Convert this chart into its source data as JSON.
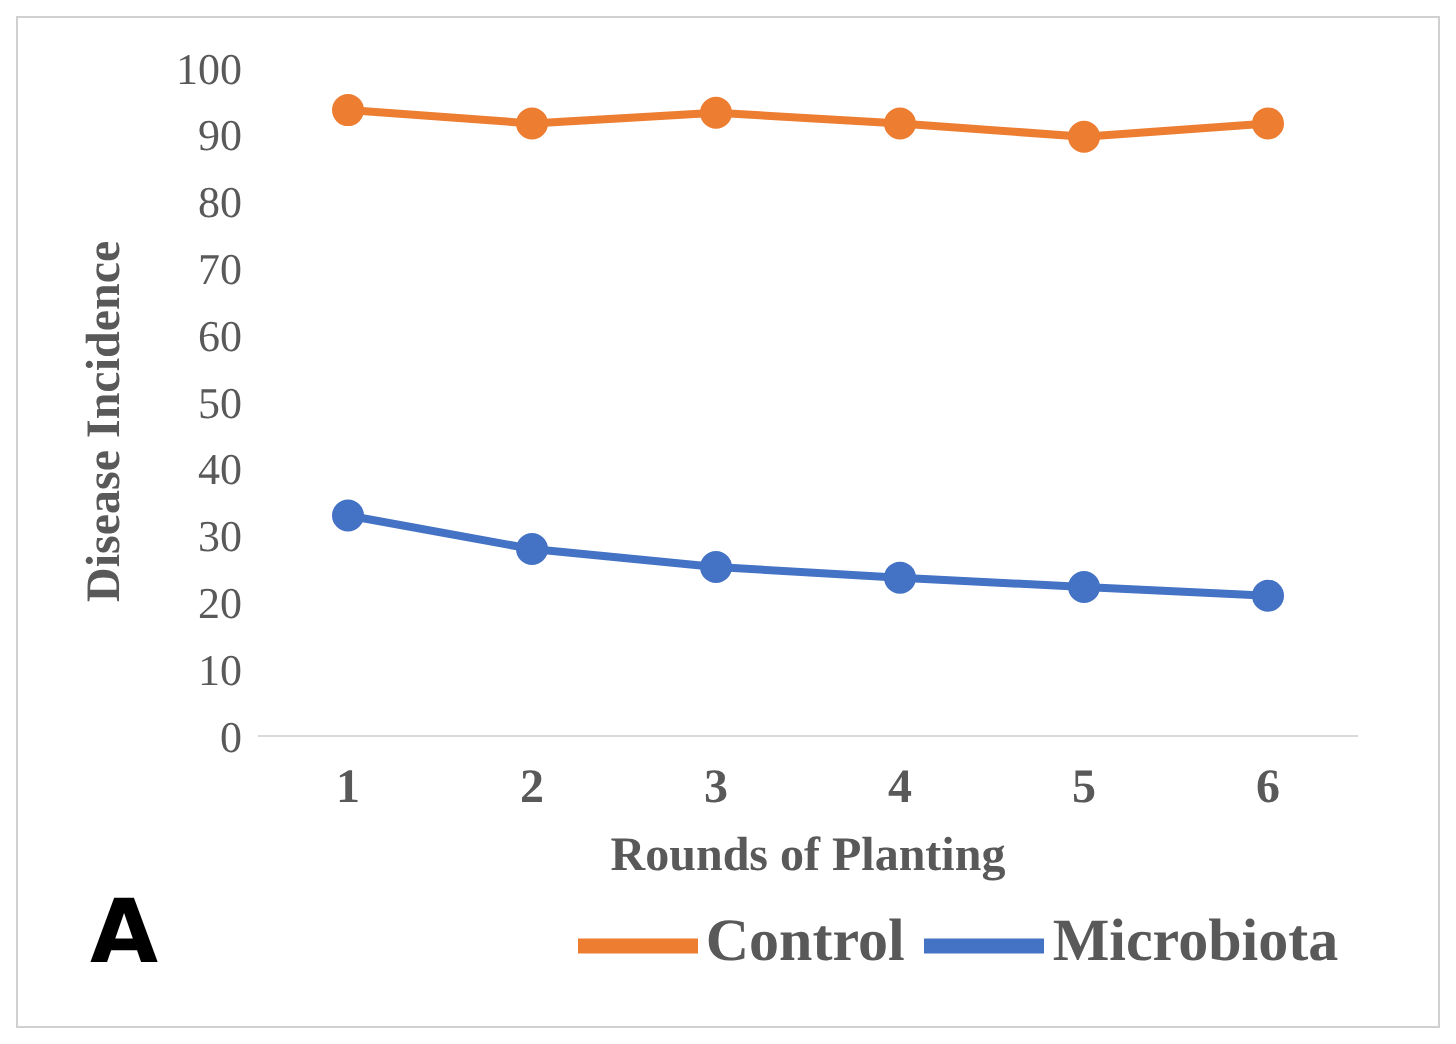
{
  "chart_data": {
    "type": "line",
    "xlabel": "Rounds of Planting",
    "ylabel": "Disease Incidence",
    "categories": [
      "1",
      "2",
      "3",
      "4",
      "5",
      "6"
    ],
    "series": [
      {
        "name": "Microbiota",
        "color": "#4472c4",
        "values": [
          33,
          28,
          25.3,
          23.7,
          22.3,
          21
        ]
      },
      {
        "name": "Control",
        "color": "#ed7d31",
        "values": [
          93.7,
          91.7,
          93.3,
          91.7,
          89.7,
          91.7
        ]
      }
    ],
    "ylim": [
      0,
      100
    ],
    "yticks": [
      0,
      10,
      20,
      30,
      40,
      50,
      60,
      70,
      80,
      90,
      100
    ],
    "grid": false,
    "legend": "bottom",
    "marker": "circle",
    "line_style": "solid",
    "annotations": [
      "A"
    ]
  }
}
